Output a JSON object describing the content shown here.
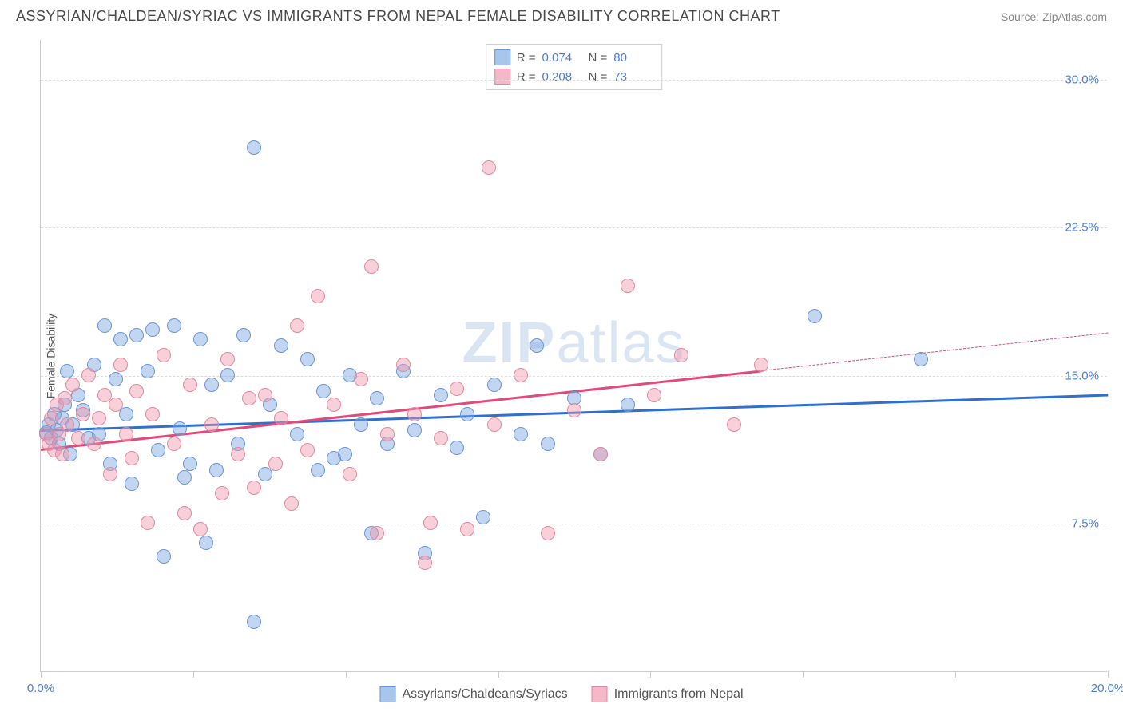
{
  "header": {
    "title": "ASSYRIAN/CHALDEAN/SYRIAC VS IMMIGRANTS FROM NEPAL FEMALE DISABILITY CORRELATION CHART",
    "source": "Source: ZipAtlas.com"
  },
  "watermark": {
    "zip": "ZIP",
    "atlas": "atlas"
  },
  "chart": {
    "type": "scatter",
    "ylabel": "Female Disability",
    "xlim": [
      0,
      20
    ],
    "ylim": [
      0,
      32
    ],
    "xticks": [
      0,
      2.857,
      5.714,
      8.571,
      11.428,
      14.285,
      17.142,
      20
    ],
    "xtick_labels": {
      "0": "0.0%",
      "20": "20.0%"
    },
    "yticks": [
      7.5,
      15.0,
      22.5,
      30.0
    ],
    "ytick_labels": [
      "7.5%",
      "15.0%",
      "22.5%",
      "30.0%"
    ],
    "background_color": "#ffffff",
    "grid_color": "#dddddd",
    "axis_color": "#cccccc",
    "tick_label_color": "#4a7fd8",
    "point_radius": 8,
    "series": [
      {
        "name": "Assyrians/Chaldeans/Syriacs",
        "fill": "rgba(120, 165, 225, 0.45)",
        "stroke": "#6a95d5",
        "line_color": "#2e6fd0",
        "swatch_fill": "#a8c5ec",
        "swatch_stroke": "#6a95d5",
        "R": "0.074",
        "N": "80",
        "trend": {
          "x1": 0,
          "y1": 12.3,
          "x2": 20,
          "y2": 14.1,
          "solid_to_x": 20
        },
        "points": [
          [
            0.1,
            12.1
          ],
          [
            0.15,
            12.5
          ],
          [
            0.2,
            11.8
          ],
          [
            0.25,
            13.0
          ],
          [
            0.3,
            12.2
          ],
          [
            0.35,
            11.5
          ],
          [
            0.4,
            12.8
          ],
          [
            0.45,
            13.5
          ],
          [
            0.5,
            15.2
          ],
          [
            0.55,
            11.0
          ],
          [
            0.6,
            12.5
          ],
          [
            0.7,
            14.0
          ],
          [
            0.8,
            13.2
          ],
          [
            0.9,
            11.8
          ],
          [
            1.0,
            15.5
          ],
          [
            1.1,
            12.0
          ],
          [
            1.2,
            17.5
          ],
          [
            1.3,
            10.5
          ],
          [
            1.4,
            14.8
          ],
          [
            1.5,
            16.8
          ],
          [
            1.6,
            13.0
          ],
          [
            1.7,
            9.5
          ],
          [
            1.8,
            17.0
          ],
          [
            2.0,
            15.2
          ],
          [
            2.1,
            17.3
          ],
          [
            2.2,
            11.2
          ],
          [
            2.3,
            5.8
          ],
          [
            2.5,
            17.5
          ],
          [
            2.6,
            12.3
          ],
          [
            2.7,
            9.8
          ],
          [
            2.8,
            10.5
          ],
          [
            3.0,
            16.8
          ],
          [
            3.1,
            6.5
          ],
          [
            3.2,
            14.5
          ],
          [
            3.3,
            10.2
          ],
          [
            3.5,
            15.0
          ],
          [
            3.7,
            11.5
          ],
          [
            3.8,
            17.0
          ],
          [
            4.0,
            2.5
          ],
          [
            4.0,
            26.5
          ],
          [
            4.2,
            10.0
          ],
          [
            4.3,
            13.5
          ],
          [
            4.5,
            16.5
          ],
          [
            4.8,
            12.0
          ],
          [
            5.0,
            15.8
          ],
          [
            5.2,
            10.2
          ],
          [
            5.3,
            14.2
          ],
          [
            5.5,
            10.8
          ],
          [
            5.7,
            11.0
          ],
          [
            5.8,
            15.0
          ],
          [
            6.0,
            12.5
          ],
          [
            6.2,
            7.0
          ],
          [
            6.3,
            13.8
          ],
          [
            6.5,
            11.5
          ],
          [
            6.8,
            15.2
          ],
          [
            7.0,
            12.2
          ],
          [
            7.2,
            6.0
          ],
          [
            7.5,
            14.0
          ],
          [
            7.8,
            11.3
          ],
          [
            8.0,
            13.0
          ],
          [
            8.3,
            7.8
          ],
          [
            8.5,
            14.5
          ],
          [
            9.0,
            12.0
          ],
          [
            9.3,
            16.5
          ],
          [
            9.5,
            11.5
          ],
          [
            10.0,
            13.8
          ],
          [
            10.5,
            11.0
          ],
          [
            11.0,
            13.5
          ],
          [
            14.5,
            18.0
          ],
          [
            16.5,
            15.8
          ]
        ]
      },
      {
        "name": "Immigrants from Nepal",
        "fill": "rgba(240, 150, 170, 0.45)",
        "stroke": "#e088a0",
        "line_color": "#e24a7a",
        "swatch_fill": "#f5b8c8",
        "swatch_stroke": "#e088a0",
        "R": "0.208",
        "N": "73",
        "trend": {
          "x1": 0,
          "y1": 11.3,
          "x2": 20,
          "y2": 17.2,
          "solid_to_x": 13.5
        },
        "points": [
          [
            0.1,
            12.0
          ],
          [
            0.15,
            11.5
          ],
          [
            0.2,
            12.8
          ],
          [
            0.25,
            11.2
          ],
          [
            0.3,
            13.5
          ],
          [
            0.35,
            12.0
          ],
          [
            0.4,
            11.0
          ],
          [
            0.45,
            13.8
          ],
          [
            0.5,
            12.5
          ],
          [
            0.6,
            14.5
          ],
          [
            0.7,
            11.8
          ],
          [
            0.8,
            13.0
          ],
          [
            0.9,
            15.0
          ],
          [
            1.0,
            11.5
          ],
          [
            1.1,
            12.8
          ],
          [
            1.2,
            14.0
          ],
          [
            1.3,
            10.0
          ],
          [
            1.4,
            13.5
          ],
          [
            1.5,
            15.5
          ],
          [
            1.6,
            12.0
          ],
          [
            1.7,
            10.8
          ],
          [
            1.8,
            14.2
          ],
          [
            2.0,
            7.5
          ],
          [
            2.1,
            13.0
          ],
          [
            2.3,
            16.0
          ],
          [
            2.5,
            11.5
          ],
          [
            2.7,
            8.0
          ],
          [
            2.8,
            14.5
          ],
          [
            3.0,
            7.2
          ],
          [
            3.2,
            12.5
          ],
          [
            3.4,
            9.0
          ],
          [
            3.5,
            15.8
          ],
          [
            3.7,
            11.0
          ],
          [
            3.9,
            13.8
          ],
          [
            4.0,
            9.3
          ],
          [
            4.2,
            14.0
          ],
          [
            4.4,
            10.5
          ],
          [
            4.5,
            12.8
          ],
          [
            4.7,
            8.5
          ],
          [
            4.8,
            17.5
          ],
          [
            5.0,
            11.2
          ],
          [
            5.2,
            19.0
          ],
          [
            5.5,
            13.5
          ],
          [
            5.8,
            10.0
          ],
          [
            6.0,
            14.8
          ],
          [
            6.2,
            20.5
          ],
          [
            6.3,
            7.0
          ],
          [
            6.5,
            12.0
          ],
          [
            6.8,
            15.5
          ],
          [
            7.0,
            13.0
          ],
          [
            7.2,
            5.5
          ],
          [
            7.3,
            7.5
          ],
          [
            7.5,
            11.8
          ],
          [
            7.8,
            14.3
          ],
          [
            8.0,
            7.2
          ],
          [
            8.4,
            25.5
          ],
          [
            8.5,
            12.5
          ],
          [
            9.0,
            15.0
          ],
          [
            9.5,
            7.0
          ],
          [
            10.0,
            13.2
          ],
          [
            10.5,
            11.0
          ],
          [
            11.0,
            19.5
          ],
          [
            11.5,
            14.0
          ],
          [
            12.0,
            16.0
          ],
          [
            13.0,
            12.5
          ],
          [
            13.5,
            15.5
          ]
        ]
      }
    ],
    "stats_legend_labels": {
      "R": "R =",
      "N": "N ="
    },
    "bottom_legend": true
  }
}
